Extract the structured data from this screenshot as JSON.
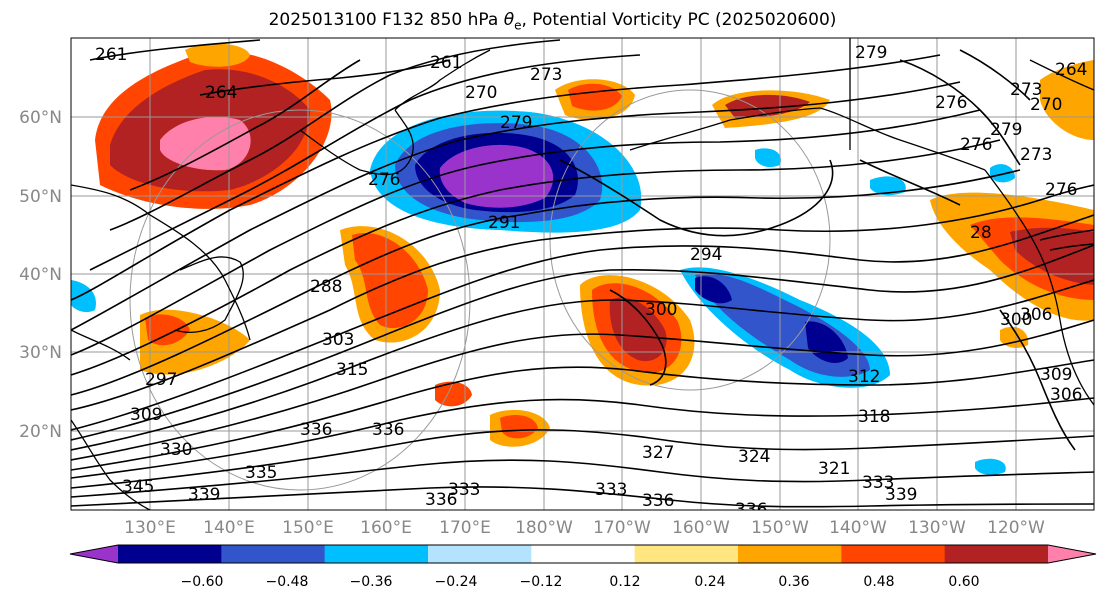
{
  "title": {
    "pre": "2025013100 F132 850 hPa ",
    "symbol": "θ",
    "sub": "e",
    "post": ", Potential Vorticity PC (2025020600)"
  },
  "lat_labels": [
    "60°N",
    "50°N",
    "40°N",
    "30°N",
    "20°N"
  ],
  "lon_labels": [
    "130°E",
    "140°E",
    "150°E",
    "160°E",
    "170°E",
    "180°W",
    "170°W",
    "160°W",
    "150°W",
    "140°W",
    "130°W",
    "120°W"
  ],
  "contour_labels": [
    "261",
    "261",
    "264",
    "270",
    "273",
    "279",
    "279",
    "276",
    "276",
    "276",
    "279",
    "273",
    "264",
    "273",
    "270",
    "276",
    "291",
    "294",
    "288",
    "303",
    "315",
    "300",
    "297",
    "306",
    "309",
    "309",
    "330",
    "336",
    "336",
    "335",
    "345",
    "339",
    "336",
    "333",
    "333",
    "327",
    "324",
    "321",
    "318",
    "312",
    "333",
    "339",
    "336",
    "336",
    "306",
    "28",
    "300"
  ],
  "colorbar": {
    "colors": [
      "#9933cc",
      "#000090",
      "#3355cc",
      "#00bfff",
      "#b3e3ff",
      "#ffffff",
      "#ffe680",
      "#ffa500",
      "#ff4500",
      "#b22222",
      "#ff80aa"
    ],
    "tick_labels": [
      "−0.60",
      "−0.48",
      "−0.36",
      "−0.24",
      "−0.12",
      "0.12",
      "0.24",
      "0.36",
      "0.48",
      "0.60"
    ]
  }
}
